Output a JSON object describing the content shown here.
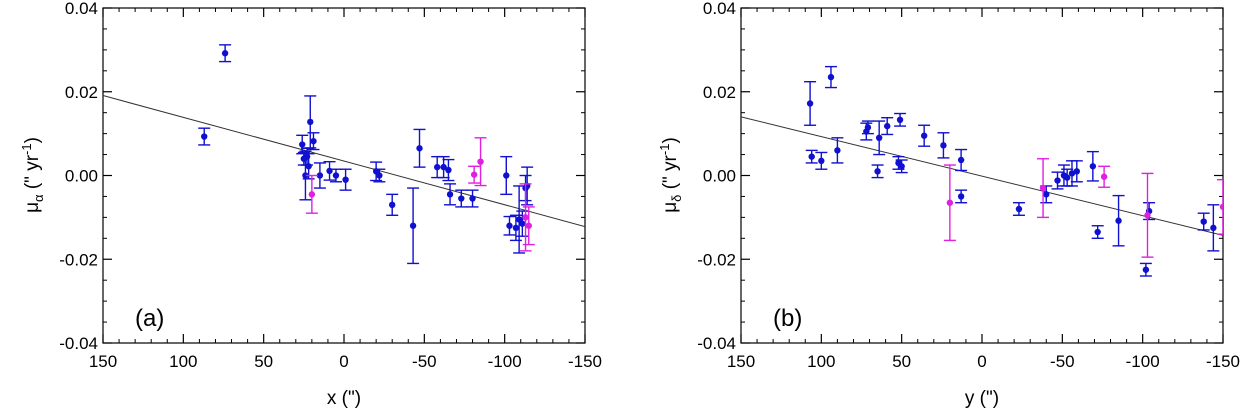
{
  "chart_data": [
    {
      "type": "scatter",
      "panel_label": "(a)",
      "xlabel": "x (\")",
      "ylabel_main": "μ",
      "ylabel_sub": "α",
      "ylabel_rest": " (\" yr",
      "ylabel_sup": "-1",
      "ylabel_close": ")",
      "xlim": [
        150,
        -150
      ],
      "ylim": [
        -0.04,
        0.04
      ],
      "xticks": [
        150,
        100,
        50,
        0,
        -50,
        -100,
        -150
      ],
      "xtick_labels": [
        "150",
        "100",
        "50",
        "0",
        "-50",
        "-100",
        "-150"
      ],
      "yticks": [
        0.04,
        0.02,
        0.0,
        -0.02,
        -0.04
      ],
      "ytick_labels": [
        "0.04",
        "0.02",
        "0.00",
        "-0.02",
        "-0.04"
      ],
      "fit_line": {
        "x": [
          150,
          -150
        ],
        "y": [
          0.0191,
          -0.0122
        ]
      },
      "series": [
        {
          "color": "#1010d0",
          "points": [
            {
              "x": 87,
              "y": 0.0093,
              "err": 0.002
            },
            {
              "x": 74,
              "y": 0.0292,
              "err": 0.002
            },
            {
              "x": 26,
              "y": 0.0074,
              "err": 0.0022
            },
            {
              "x": 25,
              "y": 0.004,
              "err": 0.0015
            },
            {
              "x": 24,
              "y": 0.0,
              "err": 0.0058
            },
            {
              "x": 23,
              "y": 0.0045,
              "err": 0.002
            },
            {
              "x": 22,
              "y": 0.0022,
              "err": 0.003
            },
            {
              "x": 21,
              "y": 0.0128,
              "err": 0.0062
            },
            {
              "x": 19,
              "y": 0.0082,
              "err": 0.002
            },
            {
              "x": 15,
              "y": 0.0,
              "err": 0.003
            },
            {
              "x": 9,
              "y": 0.0011,
              "err": 0.0022
            },
            {
              "x": 5,
              "y": 0.0,
              "err": 0.0015
            },
            {
              "x": -1,
              "y": -0.001,
              "err": 0.0025
            },
            {
              "x": -20,
              "y": 0.001,
              "err": 0.0022
            },
            {
              "x": -22,
              "y": 0.0,
              "err": 0.0015
            },
            {
              "x": -30,
              "y": -0.007,
              "err": 0.0025
            },
            {
              "x": -43,
              "y": -0.012,
              "err": 0.009
            },
            {
              "x": -47,
              "y": 0.0065,
              "err": 0.0045
            },
            {
              "x": -58,
              "y": 0.002,
              "err": 0.0025
            },
            {
              "x": -62,
              "y": 0.002,
              "err": 0.0025
            },
            {
              "x": -65,
              "y": 0.0013,
              "err": 0.0025
            },
            {
              "x": -66,
              "y": -0.0045,
              "err": 0.0025
            },
            {
              "x": -73,
              "y": -0.0055,
              "err": 0.002
            },
            {
              "x": -80,
              "y": -0.0055,
              "err": 0.002
            },
            {
              "x": -101,
              "y": 0.0,
              "err": 0.0045
            },
            {
              "x": -103,
              "y": -0.012,
              "err": 0.0022
            },
            {
              "x": -107,
              "y": -0.0125,
              "err": 0.003
            },
            {
              "x": -109,
              "y": -0.0105,
              "err": 0.008
            },
            {
              "x": -111,
              "y": -0.0115,
              "err": 0.003
            },
            {
              "x": -113,
              "y": -0.003,
              "err": 0.003
            },
            {
              "x": -114,
              "y": -0.0025,
              "err": 0.0045
            }
          ]
        },
        {
          "color": "#e020e0",
          "points": [
            {
              "x": 20,
              "y": -0.0045,
              "err": 0.0045
            },
            {
              "x": -81,
              "y": 0.0002,
              "err": 0.002
            },
            {
              "x": -85,
              "y": 0.0033,
              "err": 0.0057
            },
            {
              "x": -113,
              "y": -0.01,
              "err": 0.008
            },
            {
              "x": -115,
              "y": -0.012,
              "err": 0.0045
            }
          ]
        }
      ]
    },
    {
      "type": "scatter",
      "panel_label": "(b)",
      "xlabel": "y (\")",
      "ylabel_main": "μ",
      "ylabel_sub": "δ",
      "ylabel_rest": " (\" yr",
      "ylabel_sup": "-1",
      "ylabel_close": ")",
      "xlim": [
        150,
        -150
      ],
      "ylim": [
        -0.04,
        0.04
      ],
      "xticks": [
        150,
        100,
        50,
        0,
        -50,
        -100,
        -150
      ],
      "xtick_labels": [
        "150",
        "100",
        "50",
        "0",
        "-50",
        "-100",
        "-150"
      ],
      "yticks": [
        0.04,
        0.02,
        0.0,
        -0.02,
        -0.04
      ],
      "ytick_labels": [
        "0.04",
        "0.02",
        "0.00",
        "-0.02",
        "-0.04"
      ],
      "fit_line": {
        "x": [
          150,
          -150
        ],
        "y": [
          0.014,
          -0.0143
        ]
      },
      "series": [
        {
          "color": "#1010d0",
          "points": [
            {
              "x": 107,
              "y": 0.0172,
              "err": 0.0052
            },
            {
              "x": 106,
              "y": 0.0045,
              "err": 0.0015
            },
            {
              "x": 100,
              "y": 0.0035,
              "err": 0.002
            },
            {
              "x": 94,
              "y": 0.0235,
              "err": 0.0025
            },
            {
              "x": 90,
              "y": 0.006,
              "err": 0.003
            },
            {
              "x": 72,
              "y": 0.0105,
              "err": 0.002
            },
            {
              "x": 71,
              "y": 0.0115,
              "err": 0.0015
            },
            {
              "x": 65,
              "y": 0.001,
              "err": 0.0015
            },
            {
              "x": 64,
              "y": 0.009,
              "err": 0.004
            },
            {
              "x": 59,
              "y": 0.0118,
              "err": 0.002
            },
            {
              "x": 52,
              "y": 0.003,
              "err": 0.0015
            },
            {
              "x": 51,
              "y": 0.0133,
              "err": 0.0015
            },
            {
              "x": 50,
              "y": 0.0022,
              "err": 0.0015
            },
            {
              "x": 36,
              "y": 0.0095,
              "err": 0.0025
            },
            {
              "x": 24,
              "y": 0.0072,
              "err": 0.003
            },
            {
              "x": 13,
              "y": 0.0037,
              "err": 0.0025
            },
            {
              "x": 13,
              "y": -0.005,
              "err": 0.0015
            },
            {
              "x": -23,
              "y": -0.008,
              "err": 0.0015
            },
            {
              "x": -40,
              "y": -0.0045,
              "err": 0.002
            },
            {
              "x": -47,
              "y": -0.0012,
              "err": 0.002
            },
            {
              "x": -51,
              "y": 0.0,
              "err": 0.0025
            },
            {
              "x": -53,
              "y": -0.0005,
              "err": 0.002
            },
            {
              "x": -56,
              "y": 0.0005,
              "err": 0.003
            },
            {
              "x": -59,
              "y": 0.001,
              "err": 0.0025
            },
            {
              "x": -69,
              "y": 0.0022,
              "err": 0.0035
            },
            {
              "x": -72,
              "y": -0.0135,
              "err": 0.0015
            },
            {
              "x": -85,
              "y": -0.0108,
              "err": 0.006
            },
            {
              "x": -102,
              "y": -0.0225,
              "err": 0.0015
            },
            {
              "x": -104,
              "y": -0.0085,
              "err": 0.002
            },
            {
              "x": -138,
              "y": -0.011,
              "err": 0.002
            },
            {
              "x": -144,
              "y": -0.0125,
              "err": 0.0055
            }
          ]
        },
        {
          "color": "#e020e0",
          "points": [
            {
              "x": 20,
              "y": -0.0065,
              "err": 0.009
            },
            {
              "x": -38,
              "y": -0.003,
              "err": 0.007
            },
            {
              "x": -76,
              "y": -0.0003,
              "err": 0.0025
            },
            {
              "x": -103,
              "y": -0.0095,
              "err": 0.01
            },
            {
              "x": -150,
              "y": -0.0075,
              "err": 0.0065
            }
          ]
        }
      ]
    }
  ]
}
